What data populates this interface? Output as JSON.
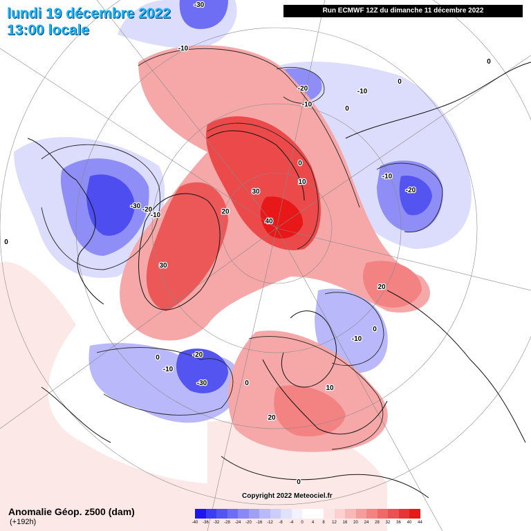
{
  "header": {
    "date_line": "lundi 19 décembre 2022",
    "time_line": "13:00 locale",
    "run_info": "Run ECMWF 12Z du dimanche 11 décembre 2022"
  },
  "footer": {
    "field_title": "Anomalie Géop. z500 (dam)",
    "forecast_hours": "(+192h)",
    "copyright": "Copyright 2022 Meteociel.fr"
  },
  "legend": {
    "ticks": [
      "-40",
      "-36",
      "-32",
      "-28",
      "-24",
      "-20",
      "-16",
      "-12",
      "-8",
      "-4",
      "0",
      "4",
      "8",
      "12",
      "16",
      "20",
      "24",
      "28",
      "32",
      "36",
      "40",
      "44"
    ],
    "colors": [
      "#1e16ee",
      "#3c3cf2",
      "#5454f0",
      "#6e6ef4",
      "#8888f6",
      "#9f9ff8",
      "#b8b8fa",
      "#cdcdfb",
      "#e1e1fd",
      "#f1f1ff",
      "#ffffff",
      "#ffffff",
      "#fde4e4",
      "#fcd0d0",
      "#f9b8b8",
      "#f69c9c",
      "#f38282",
      "#f06868",
      "#ec5050",
      "#e83434",
      "#e81818"
    ]
  },
  "map_labels": [
    {
      "text": "-30"
    },
    {
      "text": "-10"
    },
    {
      "text": "-20"
    },
    {
      "text": "-10"
    },
    {
      "text": "-10"
    },
    {
      "text": "0"
    },
    {
      "text": "0"
    },
    {
      "text": "0"
    },
    {
      "text": "-10"
    },
    {
      "text": "-20"
    },
    {
      "text": "-30"
    },
    {
      "text": "-20"
    },
    {
      "text": "-10"
    },
    {
      "text": "0"
    },
    {
      "text": "20"
    },
    {
      "text": "30"
    },
    {
      "text": "30"
    },
    {
      "text": "40"
    },
    {
      "text": "10"
    },
    {
      "text": "0"
    },
    {
      "text": "20"
    },
    {
      "text": "0"
    },
    {
      "text": "-10"
    },
    {
      "text": "0"
    },
    {
      "text": "-20"
    },
    {
      "text": "-30"
    },
    {
      "text": "-10"
    },
    {
      "text": "0"
    },
    {
      "text": "10"
    },
    {
      "text": "20"
    },
    {
      "text": "0"
    }
  ]
}
